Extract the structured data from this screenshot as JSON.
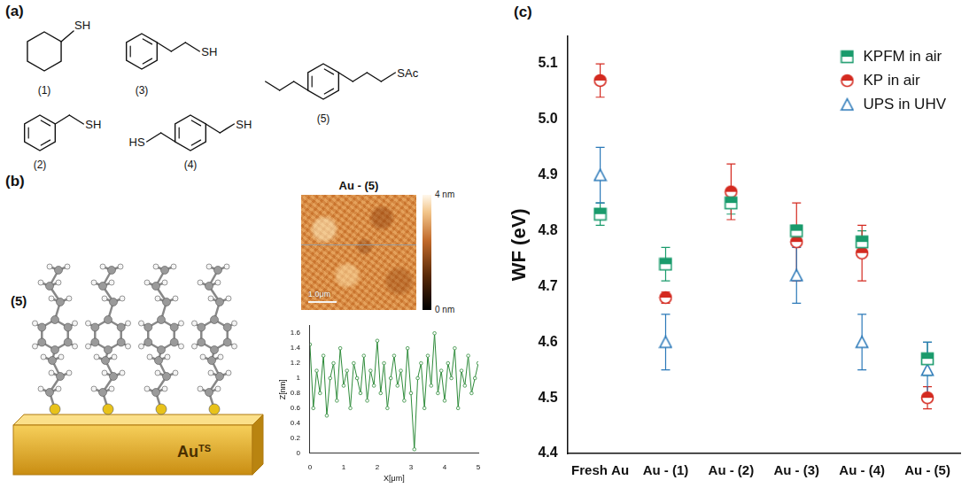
{
  "panel_labels": [
    "(a)",
    "(b)",
    "(c)"
  ],
  "structures": [
    {
      "label": "(1)",
      "groups": [
        "SH"
      ]
    },
    {
      "label": "(2)",
      "groups": [
        "SH"
      ]
    },
    {
      "label": "(3)",
      "groups": [
        "SH"
      ]
    },
    {
      "label": "(4)",
      "groups": [
        "HS",
        "SH"
      ]
    },
    {
      "label": "(5)",
      "groups": [
        "SAc"
      ]
    }
  ],
  "monolayer_model": {
    "label": "(5)",
    "substrate": "Au",
    "substrate_superscript": "TS"
  },
  "afm_image": {
    "title": "Au - (5)",
    "scale_bar": "1.0μm",
    "color_bar": {
      "range": [
        0,
        4
      ],
      "ticks": [
        {
          "value": 0,
          "label": "0 nm"
        },
        {
          "value": 4,
          "label": "4 nm"
        }
      ]
    }
  },
  "chart_data": [
    {
      "type": "scatter",
      "categories": [
        "Fresh Au",
        "Au - (1)",
        "Au - (2)",
        "Au - (3)",
        "Au - (4)",
        "Au - (5)"
      ],
      "y_label": "WF (eV)",
      "ylim": [
        4.4,
        5.15
      ],
      "yticks": [
        4.4,
        4.5,
        4.6,
        4.7,
        4.8,
        4.9,
        {
          "value": 5,
          "label": "5.0"
        },
        5.1
      ],
      "grid": false,
      "legend": "upper right",
      "series": [
        {
          "name": "KPFM in air",
          "color": "#1a9b6c",
          "marker": "half-square",
          "values": [
            4.83,
            4.74,
            4.85,
            4.8,
            4.78,
            4.57
          ],
          "errors": [
            0.02,
            0.03,
            0.02,
            0.01,
            0.02,
            0.03
          ]
        },
        {
          "name": "KP in air",
          "color": "#d42a20",
          "marker": "half-circle",
          "values": [
            5.07,
            4.68,
            4.87,
            4.78,
            4.76,
            4.5
          ],
          "errors": [
            0.03,
            0.01,
            0.05,
            0.07,
            0.05,
            0.02
          ]
        },
        {
          "name": "UPS in UHV",
          "color": "#2a78b8",
          "marker": "open-triangle",
          "values": [
            4.9,
            4.6,
            null,
            4.72,
            4.6,
            4.55
          ],
          "errors": [
            0.05,
            0.05,
            null,
            0.05,
            0.05,
            0.05
          ]
        }
      ]
    },
    {
      "type": "line",
      "x": [
        0,
        0.1,
        0.2,
        0.3,
        0.4,
        0.5,
        0.6,
        0.7,
        0.8,
        0.9,
        1.0,
        1.1,
        1.2,
        1.3,
        1.4,
        1.5,
        1.6,
        1.7,
        1.8,
        1.9,
        2.0,
        2.1,
        2.2,
        2.3,
        2.4,
        2.5,
        2.6,
        2.7,
        2.8,
        2.9,
        3.0,
        3.1,
        3.2,
        3.3,
        3.4,
        3.5,
        3.6,
        3.7,
        3.8,
        3.9,
        4.0,
        4.1,
        4.2,
        4.3,
        4.4,
        4.5,
        4.6,
        4.7,
        4.8,
        4.9,
        5.0
      ],
      "values": [
        1.45,
        0.6,
        1.1,
        0.8,
        1.3,
        0.5,
        1.0,
        1.2,
        0.7,
        1.4,
        0.9,
        1.1,
        0.6,
        1.2,
        1.0,
        0.8,
        1.3,
        0.7,
        1.1,
        0.9,
        1.5,
        0.8,
        1.2,
        0.6,
        1.0,
        1.3,
        0.9,
        1.1,
        0.7,
        1.4,
        0.8,
        0.05,
        1.0,
        1.2,
        0.6,
        1.3,
        0.9,
        1.6,
        0.8,
        1.1,
        0.7,
        1.2,
        1.0,
        1.4,
        0.6,
        1.1,
        0.9,
        1.3,
        0.8,
        1.0,
        1.2
      ],
      "color": "#2e8b3a",
      "marker": "open-circle",
      "x_label": "X[μm]",
      "y_label": "Z[nm]",
      "xlim": [
        0,
        5
      ],
      "xticks": [
        0,
        1,
        2,
        3,
        4,
        5
      ],
      "ylim": [
        0,
        1.7
      ],
      "yticks": [
        0,
        0.2,
        0.4,
        0.6,
        0.8,
        1,
        1.2,
        1.4,
        1.6
      ],
      "grid": false
    }
  ]
}
